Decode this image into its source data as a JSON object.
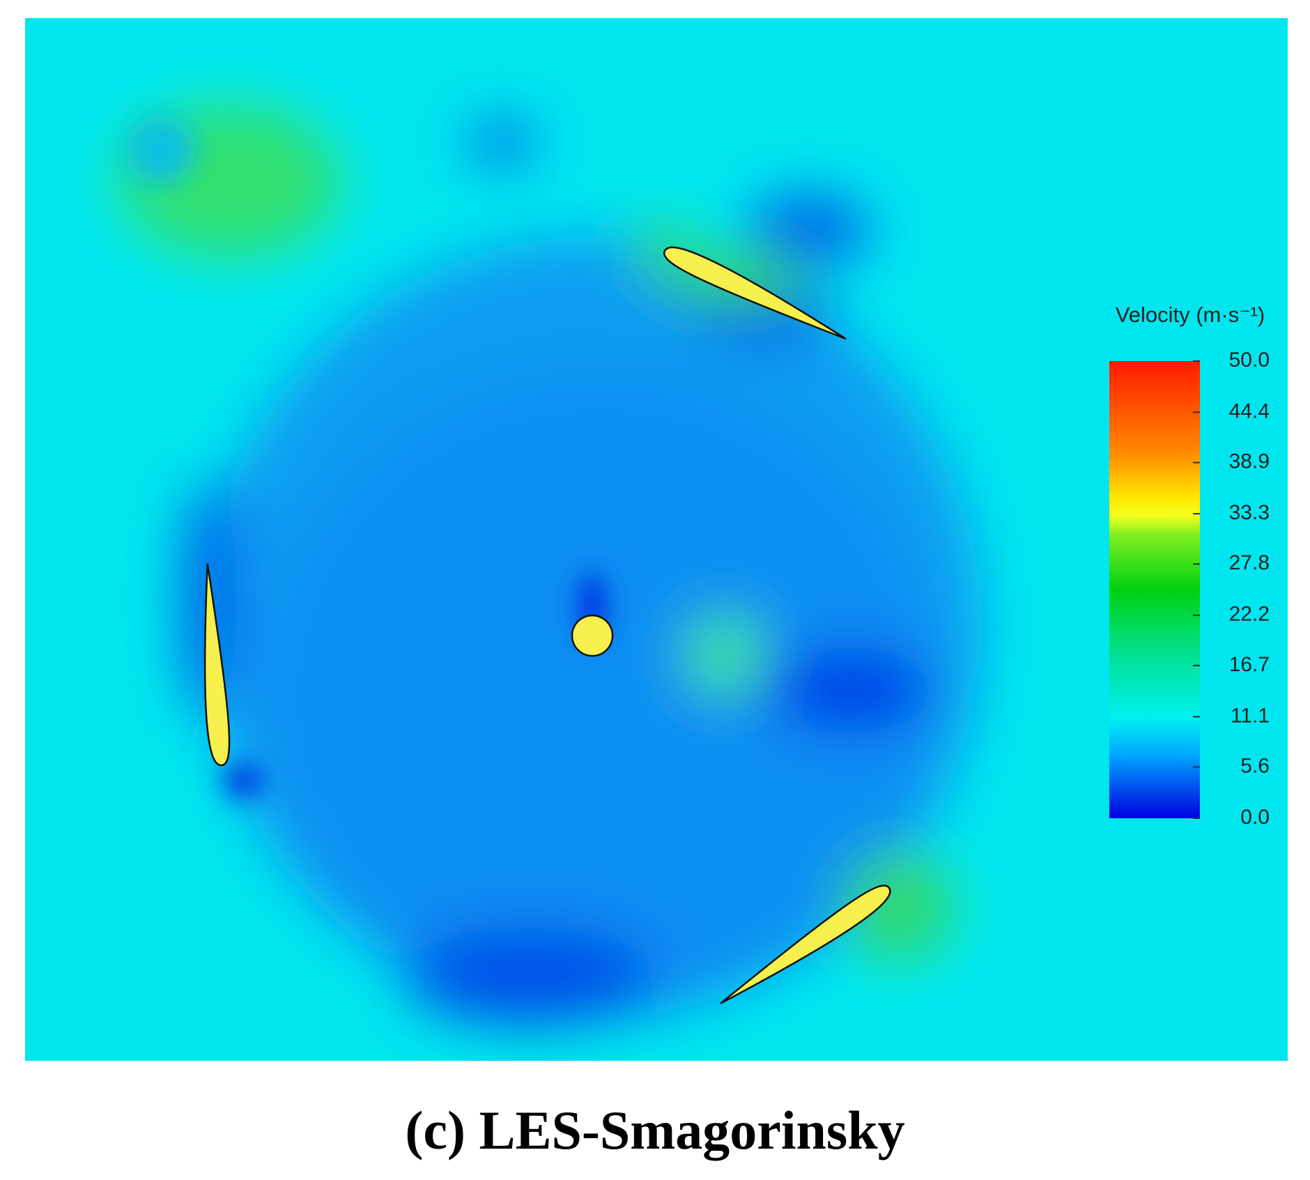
{
  "chart_data": {
    "type": "contour",
    "caption": "(c) LES-Smagorinsky",
    "colorbar": {
      "title": "Velocity (m·s⁻¹)",
      "lim": [
        0,
        50
      ],
      "ticks": [
        {
          "value": 0,
          "label": "0.0"
        },
        5.6,
        11.1,
        16.7,
        22.2,
        27.8,
        33.3,
        38.9,
        44.4,
        {
          "value": 50,
          "label": "50.0"
        }
      ]
    }
  }
}
